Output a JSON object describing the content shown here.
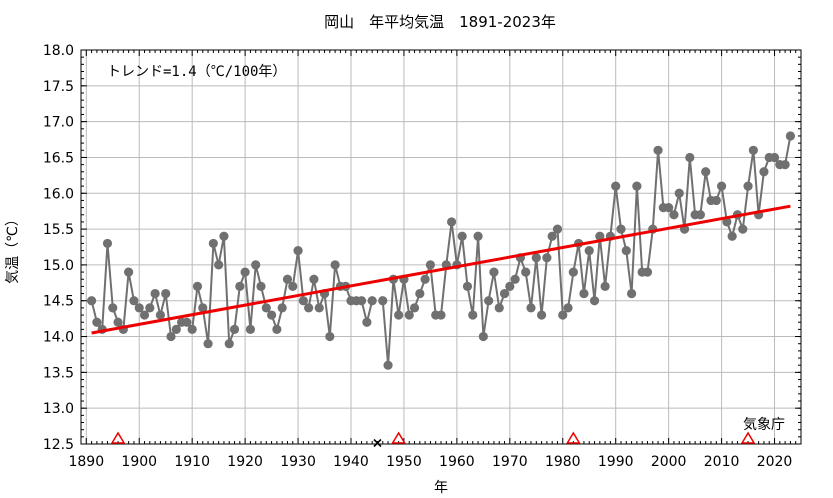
{
  "chart_data": {
    "type": "line",
    "title": "岡山　年平均気温　1891-2023年",
    "xlabel": "年",
    "ylabel": "気温（℃）",
    "trend_label": "トレンド=1.4（℃/100年）",
    "source_label": "気象庁",
    "xlim": [
      1889,
      2025
    ],
    "ylim": [
      12.5,
      18.0
    ],
    "x_ticks": [
      1890,
      1900,
      1910,
      1920,
      1930,
      1940,
      1950,
      1960,
      1970,
      1980,
      1990,
      2000,
      2010,
      2020
    ],
    "y_ticks": [
      "12.5",
      "13.0",
      "13.5",
      "14.0",
      "14.5",
      "15.0",
      "15.5",
      "16.0",
      "16.5",
      "17.0",
      "17.5",
      "18.0"
    ],
    "series": [
      {
        "x_start": 1891,
        "values": [
          14.5,
          14.2,
          14.1,
          15.3,
          14.4,
          14.2,
          14.1,
          14.9,
          14.5,
          14.4,
          14.3,
          14.4,
          14.6,
          14.3,
          14.6,
          14.0,
          14.1,
          14.2,
          14.2,
          14.1,
          14.7,
          14.4,
          13.9,
          15.3,
          15.0,
          15.4,
          13.9,
          14.1,
          14.7,
          14.9,
          14.1,
          15.0,
          14.7,
          14.4,
          14.3,
          14.1,
          14.4,
          14.8,
          14.7,
          15.2,
          14.5,
          14.4,
          14.8,
          14.4,
          14.6,
          14.0,
          15.0,
          14.7,
          14.7,
          14.5,
          14.5,
          14.5,
          14.2,
          14.5,
          null,
          14.5,
          13.6,
          14.8,
          14.3,
          14.8,
          14.3,
          14.4,
          14.6,
          14.8,
          15.0,
          14.3,
          14.3,
          15.0,
          15.6,
          15.0,
          15.4,
          14.7,
          14.3,
          15.4,
          14.0,
          14.5,
          14.9,
          14.4,
          14.6,
          14.7,
          14.8,
          15.1,
          14.9,
          14.4,
          15.1,
          14.3,
          15.1,
          15.4,
          15.5,
          14.3,
          14.4,
          14.9,
          15.3,
          14.6,
          15.2,
          14.5,
          15.4,
          14.7,
          15.4,
          16.1,
          15.5,
          15.2,
          14.6,
          16.1,
          14.9,
          14.9,
          15.5,
          16.6,
          15.8,
          15.8,
          15.7,
          16.0,
          15.5,
          16.5,
          15.7,
          15.7,
          16.3,
          15.9,
          15.9,
          16.1,
          15.6,
          15.4,
          15.7,
          15.5,
          16.1,
          16.6,
          15.7,
          16.3,
          16.5,
          16.5,
          16.4,
          16.4,
          16.8
        ]
      }
    ],
    "trend": {
      "x": [
        1891,
        2023
      ],
      "y": [
        14.05,
        15.82
      ],
      "color": "#ee0000"
    },
    "series_color": "#707070",
    "missing_marker_year": 1945,
    "station_change_years": [
      1896,
      1949,
      1982,
      2015
    ],
    "station_marker_color": "#ee0000"
  }
}
